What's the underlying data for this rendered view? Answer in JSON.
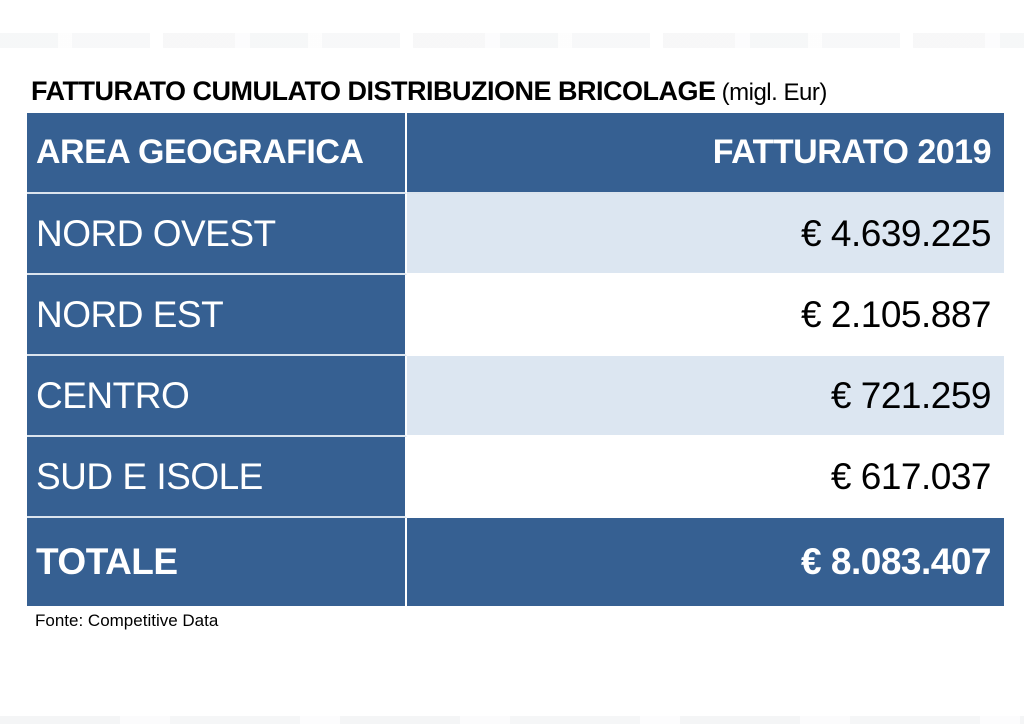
{
  "page": {
    "title_main": "FATTURATO CUMULATO DISTRIBUZIONE BRICOLAGE",
    "title_unit": " (migl. Eur)",
    "source": "Fonte: Competitive Data"
  },
  "colors": {
    "header_blue": "#366092",
    "row_light_blue": "#DCE6F1",
    "text_on_blue": "#FFFFFF",
    "text_dark": "#000000"
  },
  "table": {
    "columns": [
      {
        "label": "AREA GEOGRAFICA"
      },
      {
        "label": "FATTURATO 2019"
      }
    ],
    "rows": [
      {
        "area": "NORD OVEST",
        "value": "€ 4.639.225"
      },
      {
        "area": "NORD EST",
        "value": "€ 2.105.887"
      },
      {
        "area": "CENTRO",
        "value": "€ 721.259"
      },
      {
        "area": "SUD E ISOLE",
        "value": "€ 617.037"
      }
    ],
    "total": {
      "area": "TOTALE",
      "value": "€ 8.083.407"
    }
  },
  "chart_data": {
    "type": "table",
    "title": "FATTURATO CUMULATO DISTRIBUZIONE BRICOLAGE (migl. Eur)",
    "columns": [
      "AREA GEOGRAFICA",
      "FATTURATO 2019"
    ],
    "categories": [
      "NORD OVEST",
      "NORD EST",
      "CENTRO",
      "SUD E ISOLE",
      "TOTALE"
    ],
    "values": [
      4639225,
      2105887,
      721259,
      617037,
      8083407
    ],
    "values_formatted": [
      "€ 4.639.225",
      "€ 2.105.887",
      "€ 721.259",
      "€ 617.037",
      "€ 8.083.407"
    ],
    "unit": "migl. Eur",
    "source": "Fonte: Competitive Data",
    "layout_hints": {
      "header_style": "dark blue background, white bold text",
      "area_column_style": "dark blue background, white text, left aligned",
      "value_column_style": "right aligned, alternating light blue and white rows",
      "total_row_style": "dark blue background, white bold text"
    }
  }
}
